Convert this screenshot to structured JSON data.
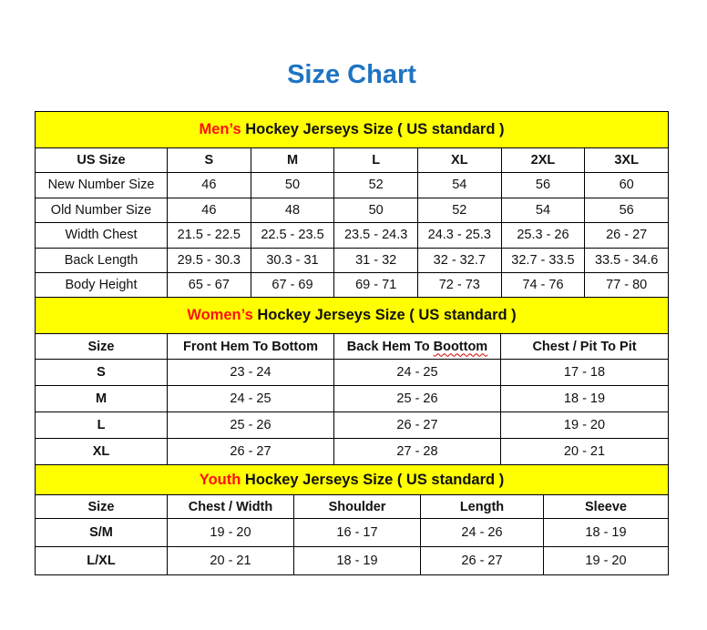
{
  "title": "Size Chart",
  "colors": {
    "title": "#1f74c1",
    "band": "#ffff00",
    "highlight": "#ff1010"
  },
  "men": {
    "highlight": "Men’s",
    "title_rest": " Hockey Jerseys Size ( US standard )",
    "headers": [
      "US Size",
      "S",
      "M",
      "L",
      "XL",
      "2XL",
      "3XL"
    ],
    "rows": [
      [
        "New Number Size",
        "46",
        "50",
        "52",
        "54",
        "56",
        "60"
      ],
      [
        "Old Number Size",
        "46",
        "48",
        "50",
        "52",
        "54",
        "56"
      ],
      [
        "Width Chest",
        "21.5 - 22.5",
        "22.5 - 23.5",
        "23.5 - 24.3",
        "24.3 - 25.3",
        "25.3 - 26",
        "26 - 27"
      ],
      [
        "Back Length",
        "29.5 - 30.3",
        "30.3 - 31",
        "31 - 32",
        "32 - 32.7",
        "32.7 - 33.5",
        "33.5 - 34.6"
      ],
      [
        "Body Height",
        "65 - 67",
        "67 - 69",
        "69 - 71",
        "72 - 73",
        "74 - 76",
        "77 - 80"
      ]
    ]
  },
  "women": {
    "highlight": "Women’s",
    "title_rest": " Hockey Jerseys Size ( US standard )",
    "headers": [
      "Size",
      "Front Hem To Bottom",
      "Back Hem To Boottom",
      "Chest / Pit To Pit"
    ],
    "rows": [
      [
        "S",
        "23 - 24",
        "24 - 25",
        "17 - 18"
      ],
      [
        "M",
        "24 - 25",
        "25 - 26",
        "18 - 19"
      ],
      [
        "L",
        "25 - 26",
        "26 - 27",
        "19 - 20"
      ],
      [
        "XL",
        "26 - 27",
        "27 - 28",
        "20 - 21"
      ]
    ]
  },
  "youth": {
    "highlight": "Youth",
    "title_rest": " Hockey Jerseys Size ( US standard )",
    "headers": [
      "Size",
      "Chest / Width",
      "Shoulder",
      "Length",
      "Sleeve"
    ],
    "rows": [
      [
        "S/M",
        "19 - 20",
        "16 - 17",
        "24 - 26",
        "18 - 19"
      ],
      [
        "L/XL",
        "20 - 21",
        "18 - 19",
        "26 - 27",
        "19 - 20"
      ]
    ]
  }
}
